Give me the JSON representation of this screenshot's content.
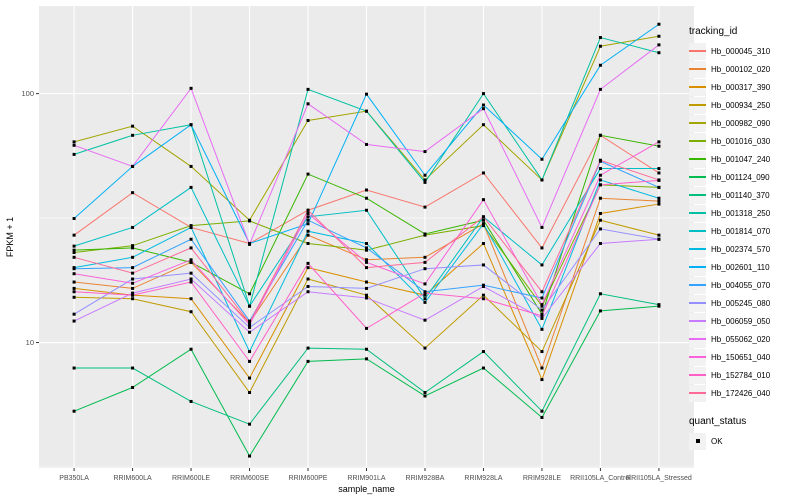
{
  "figure": {
    "bg": "#FFFFFF",
    "panel_bg": "#EBEBEB",
    "grid_color": "#FFFFFF",
    "tick_color": "#333333",
    "tick_label_color": "#4D4D4D",
    "axis_title_color": "#000000",
    "marker_color": "#000000",
    "legend_key_bg": "#F2F2F2"
  },
  "chart_data": {
    "type": "line",
    "title": "",
    "xlabel": "sample_name",
    "ylabel": "FPKM + 1",
    "y_scale": "log10",
    "y_ticks": [
      10,
      100
    ],
    "y_tick_labels": [
      "10",
      "100"
    ],
    "y_minor_ticks": [
      3.1623,
      31.623
    ],
    "ylim_log10": [
      0.496,
      2.352
    ],
    "grid": "on",
    "legend_position": "right",
    "marker": "black-square",
    "categories": [
      "PB350LA",
      "RRIM600LA",
      "RRIM600LE",
      "RRIM600SE",
      "RRIM600PE",
      "RRIM901LA",
      "RRIM928BA",
      "RRIM928LA",
      "RRIM928LE",
      "RRII105LA_Control",
      "RRII105LA_Stressed"
    ],
    "legend_title": "tracking_id",
    "series": [
      {
        "name": "Hb_000045_310",
        "color": "#F8766D",
        "values": [
          27,
          40,
          29,
          25,
          34,
          41,
          35,
          48,
          24,
          68,
          48
        ]
      },
      {
        "name": "Hb_000102_020",
        "color": "#EA8331",
        "values": [
          17.5,
          16.5,
          21,
          12,
          27,
          21.5,
          22,
          30,
          7.9,
          38,
          37
        ]
      },
      {
        "name": "Hb_000317_390",
        "color": "#D89000",
        "values": [
          16.5,
          15.5,
          15,
          7.2,
          20,
          17.5,
          15.5,
          25,
          7.1,
          33,
          36
        ]
      },
      {
        "name": "Hb_000934_250",
        "color": "#C09B00",
        "values": [
          15.2,
          15,
          13.3,
          6.3,
          18,
          15.5,
          9.5,
          15.5,
          9.2,
          31,
          27
        ]
      },
      {
        "name": "Hb_000982_090",
        "color": "#A3A500",
        "values": [
          64,
          74,
          51,
          31,
          78,
          85,
          45,
          75,
          45,
          155,
          170
        ]
      },
      {
        "name": "Hb_001016_030",
        "color": "#7CAE00",
        "values": [
          23,
          24.5,
          29.5,
          30.8,
          25,
          23.5,
          27,
          29.5,
          14,
          43,
          42
        ]
      },
      {
        "name": "Hb_001047_240",
        "color": "#39B600",
        "values": [
          23.5,
          24,
          21,
          15.7,
          47.5,
          38,
          27.3,
          31,
          13,
          68,
          61.5
        ]
      },
      {
        "name": "Hb_001124_090",
        "color": "#00BB4E",
        "values": [
          5.3,
          6.6,
          9.4,
          3.5,
          8.4,
          8.6,
          6.1,
          7.9,
          5,
          13.4,
          14
        ]
      },
      {
        "name": "Hb_001140_370",
        "color": "#00BF7D",
        "values": [
          7.9,
          7.9,
          5.8,
          4.7,
          9.5,
          9.4,
          6.3,
          9.2,
          5.3,
          15.7,
          14.2
        ]
      },
      {
        "name": "Hb_001318_250",
        "color": "#00C1A3",
        "values": [
          57,
          68,
          75,
          14,
          104,
          85,
          44,
          100,
          45,
          168,
          146
        ]
      },
      {
        "name": "Hb_001814_070",
        "color": "#00BFC4",
        "values": [
          24.4,
          29,
          42,
          14,
          32,
          34,
          15,
          32,
          20.5,
          50,
          50
        ]
      },
      {
        "name": "Hb_002374_570",
        "color": "#00BAE0",
        "values": [
          20,
          22,
          29,
          9.2,
          28,
          25,
          14.5,
          30,
          11.3,
          45,
          38
        ]
      },
      {
        "name": "Hb_002601_110",
        "color": "#00B0F6",
        "values": [
          31.5,
          51,
          75,
          25,
          30,
          99.5,
          47,
          90,
          54.5,
          130,
          190
        ]
      },
      {
        "name": "Hb_004055_070",
        "color": "#35A2FF",
        "values": [
          19.8,
          20,
          26,
          12.2,
          31,
          24,
          16,
          17,
          15.1,
          53.5,
          42
        ]
      },
      {
        "name": "Hb_005245_080",
        "color": "#9590FF",
        "values": [
          13,
          18,
          19,
          11.5,
          16.8,
          16.5,
          19.8,
          20.5,
          13.5,
          28.6,
          26
        ]
      },
      {
        "name": "Hb_006059_050",
        "color": "#C77CFF",
        "values": [
          12.2,
          15.8,
          18,
          11,
          16,
          15.1,
          12.3,
          16.8,
          12.5,
          25,
          26
        ]
      },
      {
        "name": "Hb_055062_020",
        "color": "#E76BF3",
        "values": [
          62,
          51,
          105,
          24.8,
          91,
          62.5,
          58.5,
          87,
          29,
          104,
          157
        ]
      },
      {
        "name": "Hb_150651_040",
        "color": "#FA62DB",
        "values": [
          18.9,
          17.3,
          21.5,
          11.8,
          33,
          21,
          17.2,
          37.5,
          14.2,
          47,
          64
        ]
      },
      {
        "name": "Hb_152784_010",
        "color": "#FF61C9",
        "values": [
          16,
          15.5,
          17.5,
          8.4,
          20.8,
          11.4,
          15.8,
          15,
          12.8,
          43,
          44.8
        ]
      },
      {
        "name": "Hb_172426_040",
        "color": "#FF6A98",
        "values": [
          22,
          19,
          24,
          12,
          34,
          20,
          21,
          32,
          16,
          54,
          45
        ]
      }
    ],
    "legend2_title": "quant_status",
    "legend2_items": [
      {
        "label": "OK"
      }
    ]
  }
}
